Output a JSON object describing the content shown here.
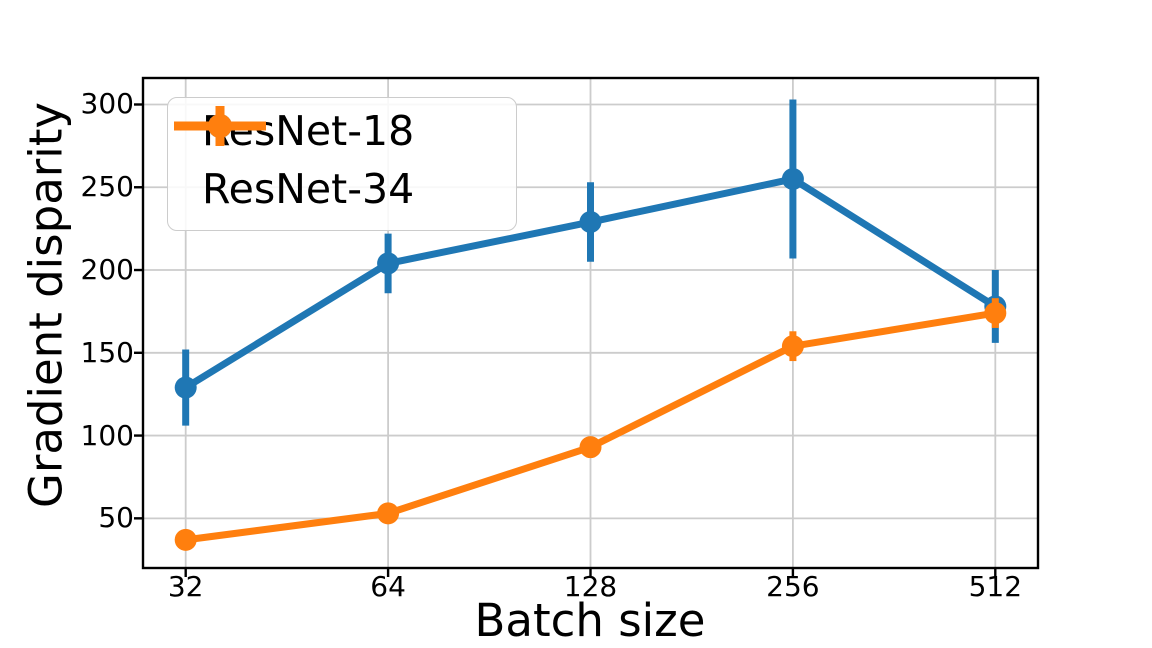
{
  "chart_data": {
    "type": "line",
    "title": "",
    "xlabel": "Batch size",
    "ylabel": "Gradient disparity",
    "x": [
      32,
      64,
      128,
      256,
      512
    ],
    "x_scale": "log2",
    "xticks": [
      32,
      64,
      128,
      256,
      512
    ],
    "yticks": [
      50,
      100,
      150,
      200,
      250,
      300
    ],
    "ylim": [
      20,
      316
    ],
    "grid": true,
    "grid_color": "#cccccc",
    "spine_color": "#000000",
    "legend_position": "upper left",
    "series": [
      {
        "name": "ResNet-18",
        "color": "#1f77b4",
        "values": [
          129,
          204,
          229,
          255,
          178
        ],
        "yerr": [
          23,
          18,
          24,
          48,
          22
        ]
      },
      {
        "name": "ResNet-34",
        "color": "#ff7f0e",
        "values": [
          37,
          53,
          93,
          154,
          174
        ],
        "yerr": [
          4,
          5,
          5,
          9,
          9
        ]
      }
    ]
  }
}
